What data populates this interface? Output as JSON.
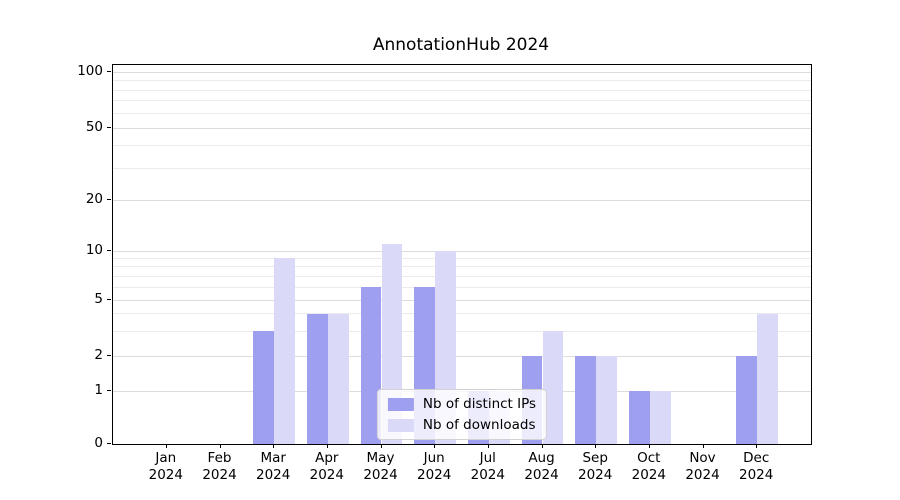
{
  "title": "AnnotationHub 2024",
  "chart_data": {
    "type": "bar",
    "title": "AnnotationHub 2024",
    "categories": [
      "Jan 2024",
      "Feb 2024",
      "Mar 2024",
      "Apr 2024",
      "May 2024",
      "Jun 2024",
      "Jul 2024",
      "Aug 2024",
      "Sep 2024",
      "Oct 2024",
      "Nov 2024",
      "Dec 2024"
    ],
    "series": [
      {
        "name": "Nb of distinct IPs",
        "color": "#9f9ff0",
        "values": [
          0,
          0,
          3,
          4,
          6,
          6,
          1,
          2,
          2,
          1,
          0,
          2
        ]
      },
      {
        "name": "Nb of downloads",
        "color": "#dadaf8",
        "values": [
          0,
          0,
          9,
          4,
          11,
          10,
          1,
          3,
          2,
          1,
          0,
          4
        ]
      }
    ],
    "xlabel": "",
    "ylabel": "",
    "yscale": "symlog",
    "y_ticks": [
      0,
      1,
      2,
      5,
      10,
      20,
      50,
      100
    ],
    "y_minor_gridlines": [
      3,
      4,
      6,
      7,
      8,
      9,
      30,
      40,
      60,
      70,
      80,
      90
    ],
    "ylim": [
      0,
      103
    ],
    "grid": true,
    "legend_position": "lower center"
  }
}
